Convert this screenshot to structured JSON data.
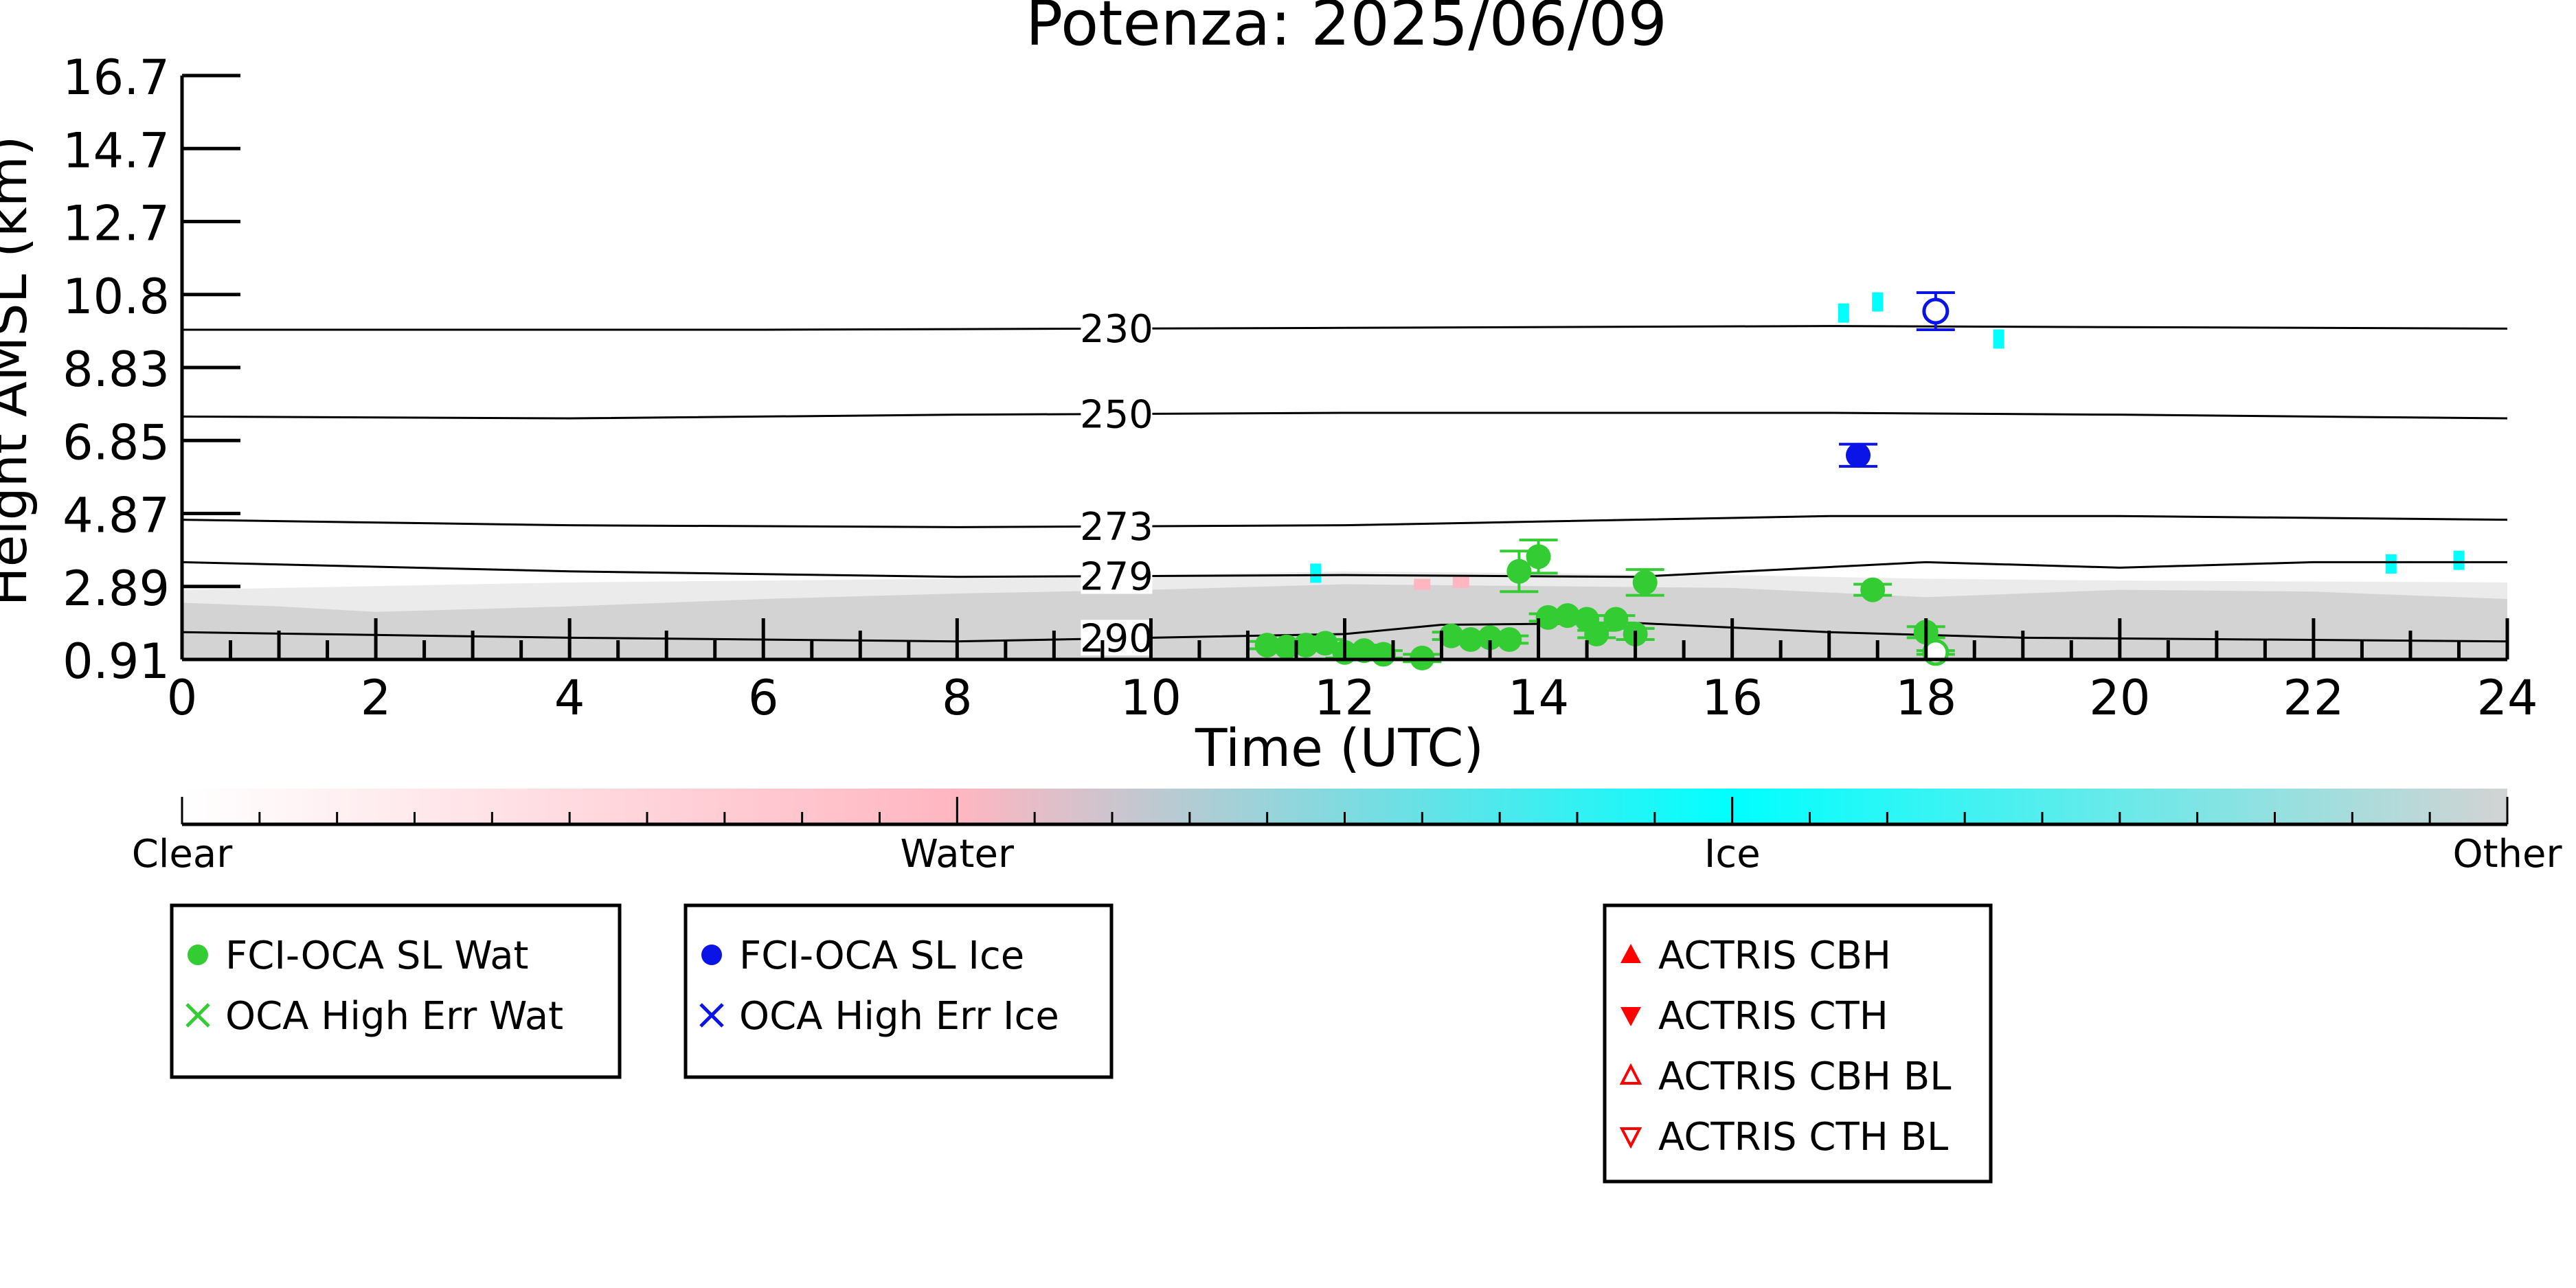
{
  "chart_data": {
    "type": "scatter",
    "title": "Potenza: 2025/06/09",
    "xlabel": "Time (UTC)",
    "ylabel": "Height AMSL (km)",
    "xlim": [
      0,
      24
    ],
    "ylim": [
      0.91,
      16.7
    ],
    "x_ticks": [
      "0",
      "2",
      "4",
      "6",
      "8",
      "10",
      "12",
      "14",
      "16",
      "18",
      "20",
      "22",
      "24"
    ],
    "y_ticks": [
      "0.91",
      "2.89",
      "4.87",
      "6.85",
      "8.83",
      "10.8",
      "12.7",
      "14.7",
      "16.7"
    ],
    "y_tick_values": [
      0.91,
      2.89,
      4.87,
      6.85,
      8.83,
      10.8,
      12.7,
      14.7,
      16.7
    ],
    "colors": {
      "water_marker": "#33cc33",
      "ice_marker": "#0a14e6",
      "actris_marker": "#ff0000",
      "clear": "#ffffff",
      "water": "#ffb6c1",
      "ice": "#00ffff",
      "other": "#d3d3d3",
      "axis": "#000000",
      "contour": "#000000"
    },
    "temperature_contours": [
      {
        "label": "230",
        "points": [
          [
            0,
            9.85
          ],
          [
            6,
            9.85
          ],
          [
            12,
            9.9
          ],
          [
            17,
            9.95
          ],
          [
            20,
            9.92
          ],
          [
            24,
            9.88
          ]
        ]
      },
      {
        "label": "250",
        "points": [
          [
            0,
            7.5
          ],
          [
            4,
            7.45
          ],
          [
            8,
            7.55
          ],
          [
            12,
            7.6
          ],
          [
            17,
            7.6
          ],
          [
            20,
            7.55
          ],
          [
            24,
            7.45
          ]
        ]
      },
      {
        "label": "273",
        "points": [
          [
            0,
            4.7
          ],
          [
            4,
            4.55
          ],
          [
            8,
            4.5
          ],
          [
            12,
            4.55
          ],
          [
            14,
            4.65
          ],
          [
            17,
            4.8
          ],
          [
            20,
            4.8
          ],
          [
            24,
            4.7
          ]
        ]
      },
      {
        "label": "279",
        "points": [
          [
            0,
            3.55
          ],
          [
            4,
            3.3
          ],
          [
            8,
            3.15
          ],
          [
            12,
            3.2
          ],
          [
            15,
            3.15
          ],
          [
            18,
            3.55
          ],
          [
            20,
            3.4
          ],
          [
            22,
            3.55
          ],
          [
            24,
            3.55
          ]
        ]
      },
      {
        "label": "290",
        "points": [
          [
            0,
            1.65
          ],
          [
            4,
            1.5
          ],
          [
            8,
            1.4
          ],
          [
            10,
            1.5
          ],
          [
            12,
            1.6
          ],
          [
            13,
            1.85
          ],
          [
            15,
            1.9
          ],
          [
            17,
            1.65
          ],
          [
            19,
            1.5
          ],
          [
            24,
            1.4
          ]
        ]
      }
    ],
    "cloud_class_background": {
      "other_top": [
        [
          0,
          2.45
        ],
        [
          1,
          2.35
        ],
        [
          2,
          2.2
        ],
        [
          4,
          2.35
        ],
        [
          6,
          2.55
        ],
        [
          8,
          2.7
        ],
        [
          10,
          2.8
        ],
        [
          12,
          2.95
        ],
        [
          14,
          2.9
        ],
        [
          16,
          2.85
        ],
        [
          18,
          2.6
        ],
        [
          20,
          2.8
        ],
        [
          22,
          2.75
        ],
        [
          24,
          2.55
        ]
      ],
      "scatter_top": [
        [
          0,
          2.8
        ],
        [
          4,
          3.0
        ],
        [
          8,
          3.1
        ],
        [
          10,
          3.2
        ],
        [
          12,
          3.3
        ],
        [
          14,
          3.25
        ],
        [
          16,
          3.2
        ],
        [
          18,
          3.1
        ],
        [
          20,
          3.05
        ],
        [
          24,
          3.0
        ]
      ],
      "ice_patches": [
        [
          17.15,
          10.3
        ],
        [
          17.5,
          10.6
        ],
        [
          18.75,
          9.6
        ],
        [
          11.7,
          3.25
        ],
        [
          22.8,
          3.5
        ],
        [
          23.5,
          3.6
        ]
      ],
      "water_patches": [
        [
          12.8,
          2.95
        ],
        [
          13.2,
          3.0
        ]
      ]
    },
    "series": [
      {
        "name": "FCI-OCA SL Wat",
        "marker": "filled-circle",
        "points": [
          {
            "x": 11.2,
            "y": 1.3,
            "err": 0.1
          },
          {
            "x": 11.4,
            "y": 1.25,
            "err": 0.1
          },
          {
            "x": 11.6,
            "y": 1.3,
            "err": 0.1
          },
          {
            "x": 11.8,
            "y": 1.35,
            "err": 0.1
          },
          {
            "x": 12.0,
            "y": 1.1,
            "err": 0.15
          },
          {
            "x": 12.2,
            "y": 1.15,
            "err": 0.15
          },
          {
            "x": 12.4,
            "y": 1.05,
            "err": 0.1
          },
          {
            "x": 12.8,
            "y": 0.95,
            "err": 0.1
          },
          {
            "x": 13.1,
            "y": 1.55,
            "err": 0.1
          },
          {
            "x": 13.3,
            "y": 1.45,
            "err": 0.1
          },
          {
            "x": 13.5,
            "y": 1.5,
            "err": 0.1
          },
          {
            "x": 13.7,
            "y": 1.45,
            "err": 0.1
          },
          {
            "x": 13.8,
            "y": 3.3,
            "err": 0.55
          },
          {
            "x": 14.0,
            "y": 3.7,
            "err": 0.45
          },
          {
            "x": 14.1,
            "y": 2.05,
            "err": 0.1
          },
          {
            "x": 14.3,
            "y": 2.1,
            "err": 0.1
          },
          {
            "x": 14.5,
            "y": 2.0,
            "err": 0.1
          },
          {
            "x": 14.6,
            "y": 1.6,
            "err": 0.1
          },
          {
            "x": 14.8,
            "y": 2.0,
            "err": 0.1
          },
          {
            "x": 15.0,
            "y": 1.6,
            "err": 0.15
          },
          {
            "x": 15.1,
            "y": 3.0,
            "err": 0.35
          },
          {
            "x": 17.45,
            "y": 2.8,
            "err": 0.15
          },
          {
            "x": 18.0,
            "y": 1.65,
            "err": 0.15
          }
        ]
      },
      {
        "name": "OCA High Err Wat",
        "marker": "x",
        "points": [
          {
            "x": 18.1,
            "y": 1.1,
            "err": 0.05
          }
        ]
      },
      {
        "name": "FCI-OCA SL Ice",
        "marker": "filled-circle",
        "points": [
          {
            "x": 17.3,
            "y": 6.45,
            "err": 0.3
          }
        ]
      },
      {
        "name": "OCA High Err Ice",
        "marker": "x",
        "points": [
          {
            "x": 18.1,
            "y": 10.35,
            "err": 0.5
          }
        ]
      },
      {
        "name": "ACTRIS CBH",
        "marker": "triangle-up",
        "points": []
      },
      {
        "name": "ACTRIS CTH",
        "marker": "triangle-down",
        "points": []
      },
      {
        "name": "ACTRIS CBH BL",
        "marker": "open-triangle-up",
        "points": []
      },
      {
        "name": "ACTRIS CTH BL",
        "marker": "open-triangle-down",
        "points": []
      }
    ],
    "colorbar": {
      "labels": [
        "Clear",
        "Water",
        "Ice",
        "Other"
      ],
      "stops": [
        0,
        0.3333,
        0.6667,
        1.0
      ]
    },
    "legend_groups": [
      {
        "placement": "below-left",
        "entries": [
          "FCI-OCA SL Wat",
          "OCA High Err Wat"
        ]
      },
      {
        "placement": "below-center-left",
        "entries": [
          "FCI-OCA SL Ice",
          "OCA High Err Ice"
        ]
      },
      {
        "placement": "below-right",
        "entries": [
          "ACTRIS CBH",
          "ACTRIS CTH",
          "ACTRIS CBH BL",
          "ACTRIS CTH BL"
        ]
      }
    ],
    "grid": false
  }
}
